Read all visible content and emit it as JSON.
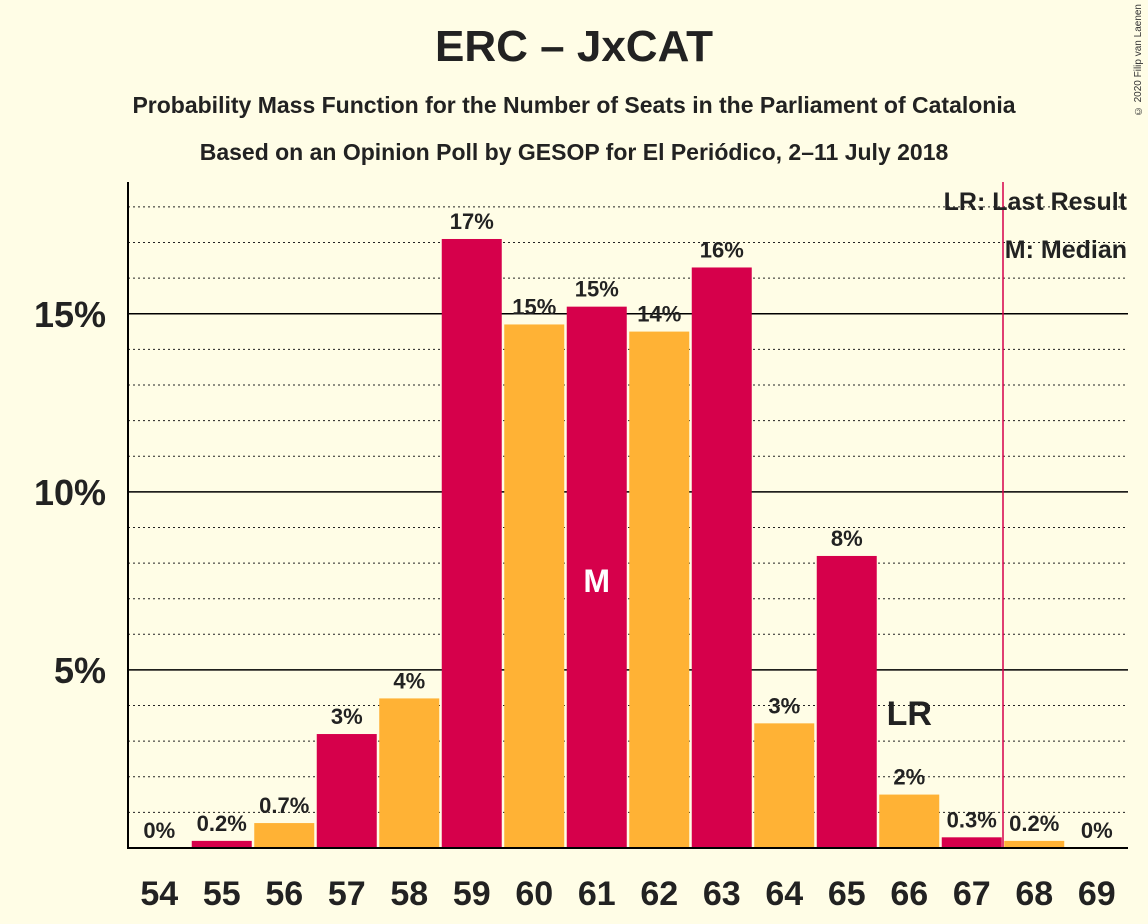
{
  "chart_data": {
    "type": "bar",
    "title": "ERC – JxCAT",
    "subtitle": "Probability Mass Function for the Number of Seats in the Parliament of Catalonia",
    "subtitle2": "Based on an Opinion Poll by GESOP for El Periódico, 2–11 July 2018",
    "copyright": "© 2020 Filip van Laenen",
    "categories": [
      "54",
      "55",
      "56",
      "57",
      "58",
      "59",
      "60",
      "61",
      "62",
      "63",
      "64",
      "65",
      "66",
      "67",
      "68",
      "69"
    ],
    "values": [
      0,
      0.2,
      0.7,
      3.2,
      4.2,
      17.1,
      14.7,
      15.2,
      14.5,
      16.3,
      3.5,
      8.2,
      1.5,
      0.3,
      0.2,
      0
    ],
    "value_labels": [
      "0%",
      "0.2%",
      "0.7%",
      "3%",
      "4%",
      "17%",
      "15%",
      "15%",
      "14%",
      "16%",
      "3%",
      "8%",
      "2%",
      "0.3%",
      "0.2%",
      "0%"
    ],
    "colors": [
      "#D6004B",
      "#D6004B",
      "#FFB235",
      "#D6004B",
      "#FFB235",
      "#D6004B",
      "#FFB235",
      "#D6004B",
      "#FFB235",
      "#D6004B",
      "#FFB235",
      "#D6004B",
      "#FFB235",
      "#D6004B",
      "#FFB235",
      "#D6004B"
    ],
    "ylim": [
      0,
      18.7
    ],
    "yticks": [
      5,
      10,
      15
    ],
    "ytick_labels": [
      "5%",
      "10%",
      "15%"
    ],
    "minor_grid_step": 1,
    "median_seat": "61",
    "median_label": "M",
    "last_result_seat": "66",
    "last_result_label": "LR",
    "majority_line_between": [
      "67",
      "68"
    ],
    "legend": [
      "LR: Last Result",
      "M: Median"
    ],
    "legend_position": "top-right"
  }
}
